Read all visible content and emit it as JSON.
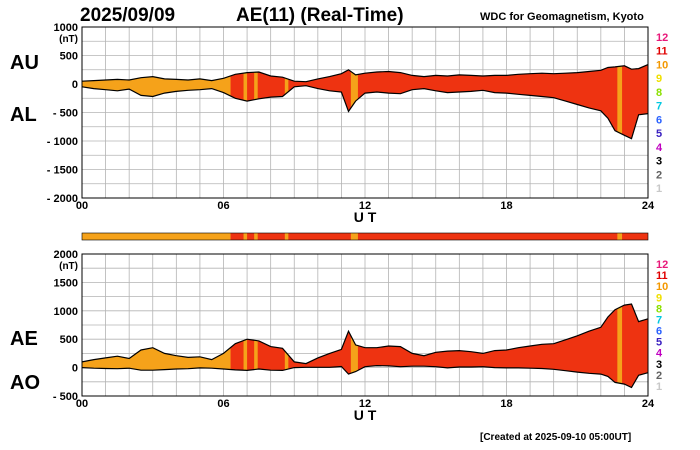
{
  "header": {
    "date": "2025/09/09",
    "index_title": "AE(11) (Real-Time)",
    "source": "WDC for Geomagnetism, Kyoto"
  },
  "footer": {
    "created": "[Created at 2025-09-10 05:00UT]"
  },
  "colors": {
    "orange": "#f5a21a",
    "red": "#ee3311",
    "bar_orange": "#f5a21a",
    "bar_red": "#ee3311"
  },
  "station_legend": [
    {
      "label": "12",
      "color": "#e8197a"
    },
    {
      "label": "11",
      "color": "#e00000"
    },
    {
      "label": "10",
      "color": "#f39800"
    },
    {
      "label": "9",
      "color": "#f0e000"
    },
    {
      "label": "8",
      "color": "#8be000"
    },
    {
      "label": "7",
      "color": "#00c8e0"
    },
    {
      "label": "6",
      "color": "#2a62ff"
    },
    {
      "label": "5",
      "color": "#3a20c0"
    },
    {
      "label": "4",
      "color": "#c000c0"
    },
    {
      "label": "3",
      "color": "#000000"
    },
    {
      "label": "2",
      "color": "#606060"
    },
    {
      "label": "1",
      "color": "#c8c8c8"
    }
  ],
  "station_bar": {
    "default_count": "11",
    "segments": [
      {
        "start": 0.0,
        "end": 6.3,
        "count": "10"
      },
      {
        "start": 6.3,
        "end": 24.0,
        "count": "11"
      },
      {
        "start": 6.85,
        "end": 7.0,
        "count": "10"
      },
      {
        "start": 7.3,
        "end": 7.45,
        "count": "10"
      },
      {
        "start": 8.6,
        "end": 8.75,
        "count": "10"
      },
      {
        "start": 11.4,
        "end": 11.7,
        "count": "10"
      },
      {
        "start": 22.7,
        "end": 22.9,
        "count": "10"
      }
    ]
  },
  "chart_data": [
    {
      "type": "area",
      "axis_label_top": "AU",
      "axis_label_bottom": "AL",
      "unit": "(nT)",
      "xlabel": "U T",
      "xlim": [
        0,
        24
      ],
      "ylim": [
        -2000,
        1000
      ],
      "yticks": [
        1000,
        500,
        0,
        -500,
        -1000,
        -1500,
        -2000
      ],
      "ytick_labels": [
        "1000",
        "500",
        "0",
        "- 500",
        "- 1000",
        "- 1500",
        "- 2000"
      ],
      "xticks": [
        0,
        6,
        12,
        18,
        24
      ],
      "xtick_labels": [
        "00",
        "06",
        "12",
        "18",
        "24"
      ],
      "x": [
        0,
        0.5,
        1,
        1.5,
        2,
        2.5,
        3,
        3.5,
        4,
        4.5,
        5,
        5.5,
        6,
        6.5,
        7,
        7.5,
        8,
        8.5,
        9,
        9.5,
        10,
        10.5,
        11,
        11.3,
        11.6,
        12,
        12.5,
        13,
        13.5,
        14,
        14.5,
        15,
        15.5,
        16,
        16.5,
        17,
        17.5,
        18,
        18.5,
        19,
        19.5,
        20,
        20.5,
        21,
        21.5,
        22,
        22.3,
        22.6,
        23,
        23.3,
        23.6,
        24
      ],
      "series": [
        {
          "name": "AU",
          "values": [
            50,
            60,
            70,
            80,
            70,
            110,
            130,
            90,
            80,
            70,
            90,
            60,
            100,
            170,
            200,
            210,
            140,
            120,
            50,
            40,
            90,
            130,
            180,
            250,
            160,
            190,
            210,
            220,
            200,
            150,
            130,
            150,
            140,
            160,
            150,
            140,
            150,
            150,
            170,
            180,
            190,
            180,
            190,
            200,
            220,
            240,
            290,
            300,
            320,
            260,
            270,
            340
          ]
        },
        {
          "name": "AL",
          "values": [
            -50,
            -80,
            -100,
            -120,
            -90,
            -200,
            -220,
            -160,
            -130,
            -110,
            -100,
            -80,
            -150,
            -250,
            -300,
            -260,
            -230,
            -220,
            -50,
            -30,
            -80,
            -120,
            -140,
            -480,
            -300,
            -160,
            -140,
            -160,
            -170,
            -100,
            -80,
            -120,
            -150,
            -140,
            -130,
            -110,
            -150,
            -160,
            -180,
            -200,
            -220,
            -240,
            -300,
            -360,
            -420,
            -470,
            -600,
            -820,
            -900,
            -960,
            -540,
            -520
          ]
        }
      ]
    },
    {
      "type": "area",
      "axis_label_top": "AE",
      "axis_label_bottom": "AO",
      "unit": "(nT)",
      "xlabel": "U T",
      "xlim": [
        0,
        24
      ],
      "ylim": [
        -500,
        2000
      ],
      "yticks": [
        2000,
        1500,
        1000,
        500,
        0,
        -500
      ],
      "ytick_labels": [
        "2000",
        "1500",
        "1000",
        "500",
        "0",
        "- 500"
      ],
      "xticks": [
        0,
        6,
        12,
        18,
        24
      ],
      "xtick_labels": [
        "00",
        "06",
        "12",
        "18",
        "24"
      ],
      "x": [
        0,
        0.5,
        1,
        1.5,
        2,
        2.5,
        3,
        3.5,
        4,
        4.5,
        5,
        5.5,
        6,
        6.5,
        7,
        7.5,
        8,
        8.5,
        9,
        9.5,
        10,
        10.5,
        11,
        11.3,
        11.6,
        12,
        12.5,
        13,
        13.5,
        14,
        14.5,
        15,
        15.5,
        16,
        16.5,
        17,
        17.5,
        18,
        18.5,
        19,
        19.5,
        20,
        20.5,
        21,
        21.5,
        22,
        22.3,
        22.6,
        23,
        23.3,
        23.6,
        24
      ],
      "series": [
        {
          "name": "AE",
          "values": [
            100,
            140,
            170,
            200,
            160,
            310,
            350,
            250,
            210,
            180,
            190,
            140,
            250,
            420,
            500,
            470,
            370,
            340,
            100,
            70,
            170,
            250,
            320,
            640,
            400,
            350,
            350,
            380,
            370,
            250,
            210,
            270,
            290,
            300,
            280,
            250,
            300,
            310,
            350,
            380,
            410,
            420,
            490,
            560,
            640,
            710,
            890,
            1020,
            1100,
            1120,
            810,
            860
          ]
        },
        {
          "name": "AO",
          "values": [
            0,
            -10,
            -15,
            -20,
            -10,
            -45,
            -45,
            -35,
            -25,
            -20,
            -5,
            -10,
            -25,
            -40,
            -50,
            -25,
            -45,
            -50,
            0,
            5,
            5,
            5,
            20,
            -115,
            -70,
            15,
            35,
            30,
            15,
            25,
            25,
            15,
            -5,
            10,
            10,
            15,
            0,
            -5,
            -5,
            -10,
            -15,
            -30,
            -55,
            -80,
            -100,
            -115,
            -155,
            -260,
            -290,
            -350,
            -135,
            -90
          ]
        }
      ]
    }
  ]
}
